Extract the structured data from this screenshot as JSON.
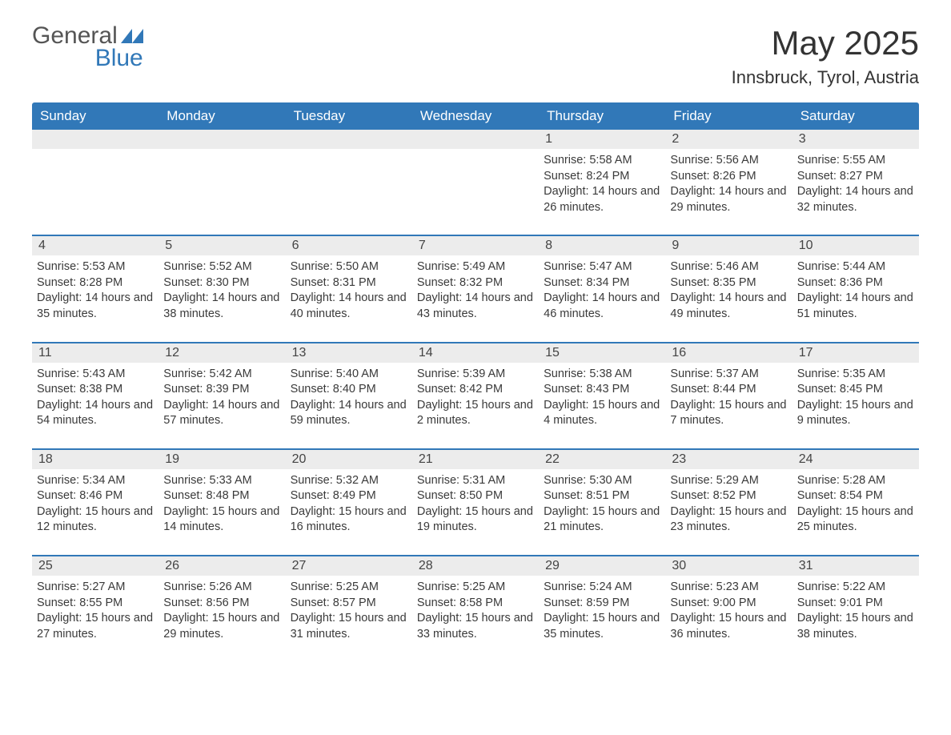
{
  "brand": {
    "name_a": "General",
    "name_b": "Blue"
  },
  "title": "May 2025",
  "location": "Innsbruck, Tyrol, Austria",
  "colors": {
    "header_bg": "#3178b8",
    "header_text": "#ffffff",
    "daynum_bg": "#ececec",
    "border": "#3178b8",
    "text": "#3a3a3a",
    "brand_blue": "#3178b8"
  },
  "typography": {
    "title_fontsize": 42,
    "location_fontsize": 22,
    "dow_fontsize": 17,
    "body_fontsize": 14.5
  },
  "days_of_week": [
    "Sunday",
    "Monday",
    "Tuesday",
    "Wednesday",
    "Thursday",
    "Friday",
    "Saturday"
  ],
  "weeks": [
    [
      {
        "n": "",
        "sunrise": "",
        "sunset": "",
        "daylight": ""
      },
      {
        "n": "",
        "sunrise": "",
        "sunset": "",
        "daylight": ""
      },
      {
        "n": "",
        "sunrise": "",
        "sunset": "",
        "daylight": ""
      },
      {
        "n": "",
        "sunrise": "",
        "sunset": "",
        "daylight": ""
      },
      {
        "n": "1",
        "sunrise": "Sunrise: 5:58 AM",
        "sunset": "Sunset: 8:24 PM",
        "daylight": "Daylight: 14 hours and 26 minutes."
      },
      {
        "n": "2",
        "sunrise": "Sunrise: 5:56 AM",
        "sunset": "Sunset: 8:26 PM",
        "daylight": "Daylight: 14 hours and 29 minutes."
      },
      {
        "n": "3",
        "sunrise": "Sunrise: 5:55 AM",
        "sunset": "Sunset: 8:27 PM",
        "daylight": "Daylight: 14 hours and 32 minutes."
      }
    ],
    [
      {
        "n": "4",
        "sunrise": "Sunrise: 5:53 AM",
        "sunset": "Sunset: 8:28 PM",
        "daylight": "Daylight: 14 hours and 35 minutes."
      },
      {
        "n": "5",
        "sunrise": "Sunrise: 5:52 AM",
        "sunset": "Sunset: 8:30 PM",
        "daylight": "Daylight: 14 hours and 38 minutes."
      },
      {
        "n": "6",
        "sunrise": "Sunrise: 5:50 AM",
        "sunset": "Sunset: 8:31 PM",
        "daylight": "Daylight: 14 hours and 40 minutes."
      },
      {
        "n": "7",
        "sunrise": "Sunrise: 5:49 AM",
        "sunset": "Sunset: 8:32 PM",
        "daylight": "Daylight: 14 hours and 43 minutes."
      },
      {
        "n": "8",
        "sunrise": "Sunrise: 5:47 AM",
        "sunset": "Sunset: 8:34 PM",
        "daylight": "Daylight: 14 hours and 46 minutes."
      },
      {
        "n": "9",
        "sunrise": "Sunrise: 5:46 AM",
        "sunset": "Sunset: 8:35 PM",
        "daylight": "Daylight: 14 hours and 49 minutes."
      },
      {
        "n": "10",
        "sunrise": "Sunrise: 5:44 AM",
        "sunset": "Sunset: 8:36 PM",
        "daylight": "Daylight: 14 hours and 51 minutes."
      }
    ],
    [
      {
        "n": "11",
        "sunrise": "Sunrise: 5:43 AM",
        "sunset": "Sunset: 8:38 PM",
        "daylight": "Daylight: 14 hours and 54 minutes."
      },
      {
        "n": "12",
        "sunrise": "Sunrise: 5:42 AM",
        "sunset": "Sunset: 8:39 PM",
        "daylight": "Daylight: 14 hours and 57 minutes."
      },
      {
        "n": "13",
        "sunrise": "Sunrise: 5:40 AM",
        "sunset": "Sunset: 8:40 PM",
        "daylight": "Daylight: 14 hours and 59 minutes."
      },
      {
        "n": "14",
        "sunrise": "Sunrise: 5:39 AM",
        "sunset": "Sunset: 8:42 PM",
        "daylight": "Daylight: 15 hours and 2 minutes."
      },
      {
        "n": "15",
        "sunrise": "Sunrise: 5:38 AM",
        "sunset": "Sunset: 8:43 PM",
        "daylight": "Daylight: 15 hours and 4 minutes."
      },
      {
        "n": "16",
        "sunrise": "Sunrise: 5:37 AM",
        "sunset": "Sunset: 8:44 PM",
        "daylight": "Daylight: 15 hours and 7 minutes."
      },
      {
        "n": "17",
        "sunrise": "Sunrise: 5:35 AM",
        "sunset": "Sunset: 8:45 PM",
        "daylight": "Daylight: 15 hours and 9 minutes."
      }
    ],
    [
      {
        "n": "18",
        "sunrise": "Sunrise: 5:34 AM",
        "sunset": "Sunset: 8:46 PM",
        "daylight": "Daylight: 15 hours and 12 minutes."
      },
      {
        "n": "19",
        "sunrise": "Sunrise: 5:33 AM",
        "sunset": "Sunset: 8:48 PM",
        "daylight": "Daylight: 15 hours and 14 minutes."
      },
      {
        "n": "20",
        "sunrise": "Sunrise: 5:32 AM",
        "sunset": "Sunset: 8:49 PM",
        "daylight": "Daylight: 15 hours and 16 minutes."
      },
      {
        "n": "21",
        "sunrise": "Sunrise: 5:31 AM",
        "sunset": "Sunset: 8:50 PM",
        "daylight": "Daylight: 15 hours and 19 minutes."
      },
      {
        "n": "22",
        "sunrise": "Sunrise: 5:30 AM",
        "sunset": "Sunset: 8:51 PM",
        "daylight": "Daylight: 15 hours and 21 minutes."
      },
      {
        "n": "23",
        "sunrise": "Sunrise: 5:29 AM",
        "sunset": "Sunset: 8:52 PM",
        "daylight": "Daylight: 15 hours and 23 minutes."
      },
      {
        "n": "24",
        "sunrise": "Sunrise: 5:28 AM",
        "sunset": "Sunset: 8:54 PM",
        "daylight": "Daylight: 15 hours and 25 minutes."
      }
    ],
    [
      {
        "n": "25",
        "sunrise": "Sunrise: 5:27 AM",
        "sunset": "Sunset: 8:55 PM",
        "daylight": "Daylight: 15 hours and 27 minutes."
      },
      {
        "n": "26",
        "sunrise": "Sunrise: 5:26 AM",
        "sunset": "Sunset: 8:56 PM",
        "daylight": "Daylight: 15 hours and 29 minutes."
      },
      {
        "n": "27",
        "sunrise": "Sunrise: 5:25 AM",
        "sunset": "Sunset: 8:57 PM",
        "daylight": "Daylight: 15 hours and 31 minutes."
      },
      {
        "n": "28",
        "sunrise": "Sunrise: 5:25 AM",
        "sunset": "Sunset: 8:58 PM",
        "daylight": "Daylight: 15 hours and 33 minutes."
      },
      {
        "n": "29",
        "sunrise": "Sunrise: 5:24 AM",
        "sunset": "Sunset: 8:59 PM",
        "daylight": "Daylight: 15 hours and 35 minutes."
      },
      {
        "n": "30",
        "sunrise": "Sunrise: 5:23 AM",
        "sunset": "Sunset: 9:00 PM",
        "daylight": "Daylight: 15 hours and 36 minutes."
      },
      {
        "n": "31",
        "sunrise": "Sunrise: 5:22 AM",
        "sunset": "Sunset: 9:01 PM",
        "daylight": "Daylight: 15 hours and 38 minutes."
      }
    ]
  ]
}
